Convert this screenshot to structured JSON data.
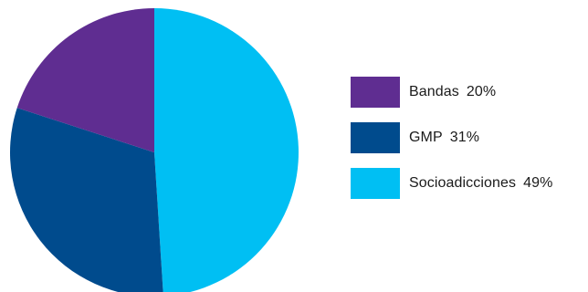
{
  "chart_data": {
    "type": "pie",
    "slices": [
      {
        "label": "Bandas",
        "value": 20,
        "value_text": "20%",
        "color": "#5f2d91"
      },
      {
        "label": "GMP",
        "value": 31,
        "value_text": "31%",
        "color": "#004b8d"
      },
      {
        "label": "Socioadicciones",
        "value": 49,
        "value_text": "49%",
        "color": "#00bff3"
      }
    ],
    "legend_position": "right",
    "start": "top",
    "direction": "clockwise-from-largest-slice"
  }
}
